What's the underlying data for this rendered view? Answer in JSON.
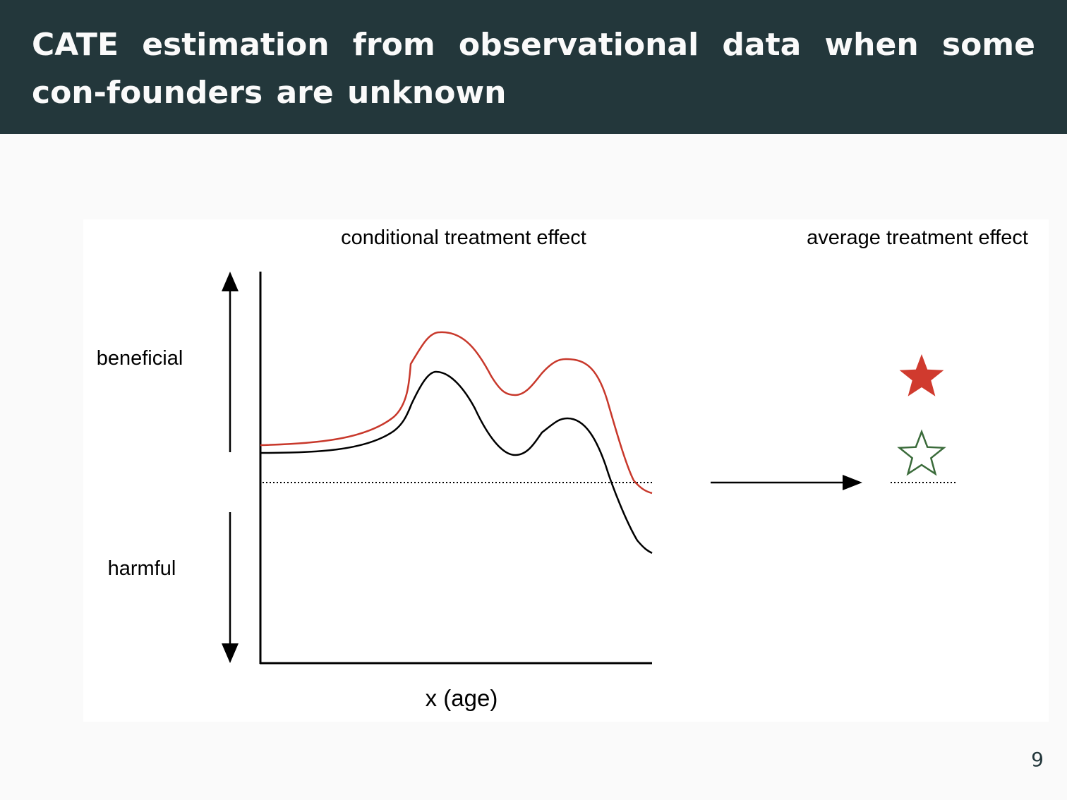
{
  "slide": {
    "title": "CATE estimation from observational data when some con-founders are unknown",
    "page_number": "9"
  },
  "figure": {
    "left_heading": "conditional treatment effect",
    "right_heading": "average treatment effect",
    "label_beneficial": "beneficial",
    "label_harmful": "harmful",
    "x_axis_label": "x (age)",
    "colors": {
      "header_bg": "#23373b",
      "curve_confounded": "#c8382b",
      "curve_true": "#000000",
      "star_filled": "#d03a2e",
      "star_outline": "#3a6b3a"
    },
    "icons": [
      "arrow-up-icon",
      "arrow-down-icon",
      "arrow-right-icon",
      "star-filled-icon",
      "star-outline-icon"
    ]
  }
}
